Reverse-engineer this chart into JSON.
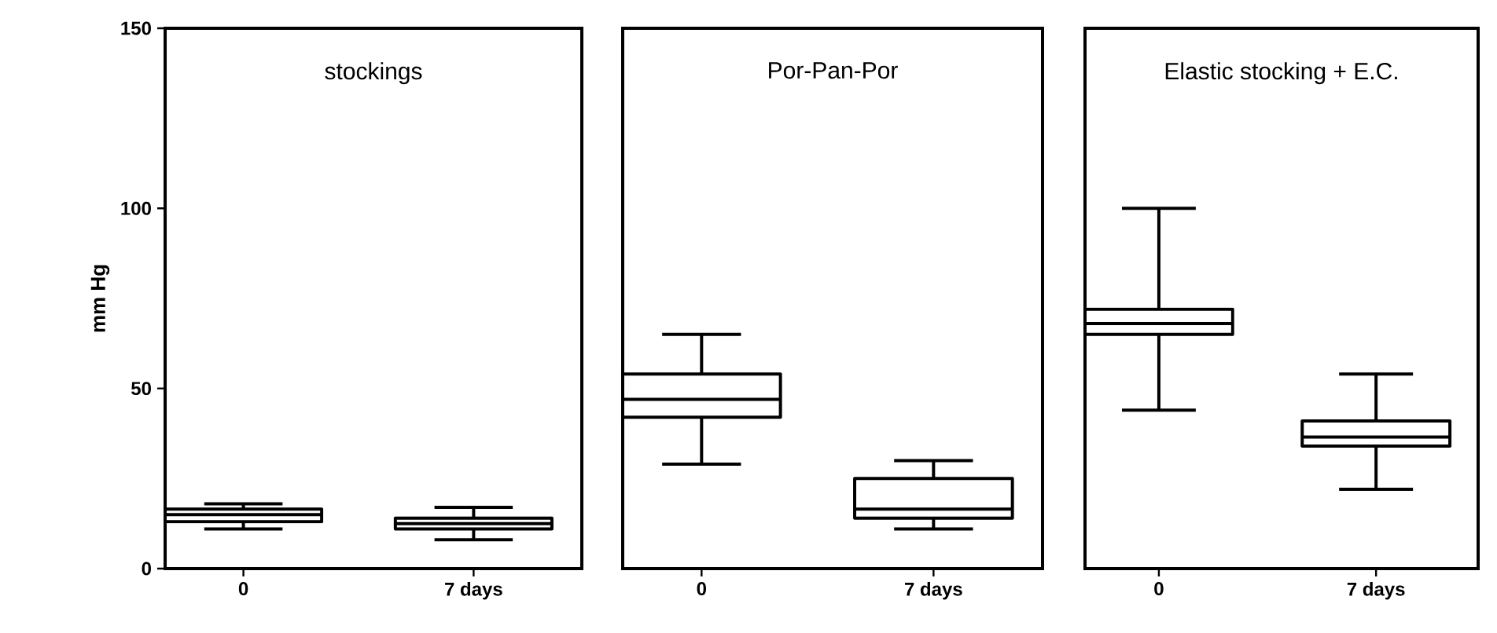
{
  "chart_data": [
    {
      "type": "box",
      "title": "stockings",
      "ylabel": "mm Hg",
      "categories": [
        "0",
        "7 days"
      ],
      "ylim": [
        0,
        150
      ],
      "yticks": [
        0,
        50,
        100,
        150
      ],
      "boxes": [
        {
          "low": 11,
          "q1": 13,
          "median": 15,
          "q3": 16.5,
          "high": 18
        },
        {
          "low": 8,
          "q1": 11,
          "median": 12.5,
          "q3": 14,
          "high": 17
        }
      ]
    },
    {
      "type": "box",
      "title": "Por-Pan-Por",
      "categories": [
        "0",
        "7 days"
      ],
      "ylim": [
        0,
        150
      ],
      "yticks": [
        0,
        50,
        100,
        150
      ],
      "tick_labels": "x",
      "boxes": [
        {
          "low": 29,
          "q1": 42,
          "median": 47,
          "q3": 54,
          "high": 65
        },
        {
          "low": 11,
          "q1": 14,
          "median": 16.5,
          "q3": 25,
          "high": 30
        }
      ]
    },
    {
      "type": "box",
      "title": "Elastic stocking + E.C.",
      "categories": [
        "0",
        "7 days"
      ],
      "ylim": [
        0,
        150
      ],
      "yticks": [
        0,
        50,
        100,
        150
      ],
      "tick_labels": "x",
      "boxes": [
        {
          "low": 44,
          "q1": 65,
          "median": 68,
          "q3": 72,
          "high": 100
        },
        {
          "low": 22,
          "q1": 34,
          "median": 36.5,
          "q3": 41,
          "high": 54
        }
      ]
    }
  ]
}
